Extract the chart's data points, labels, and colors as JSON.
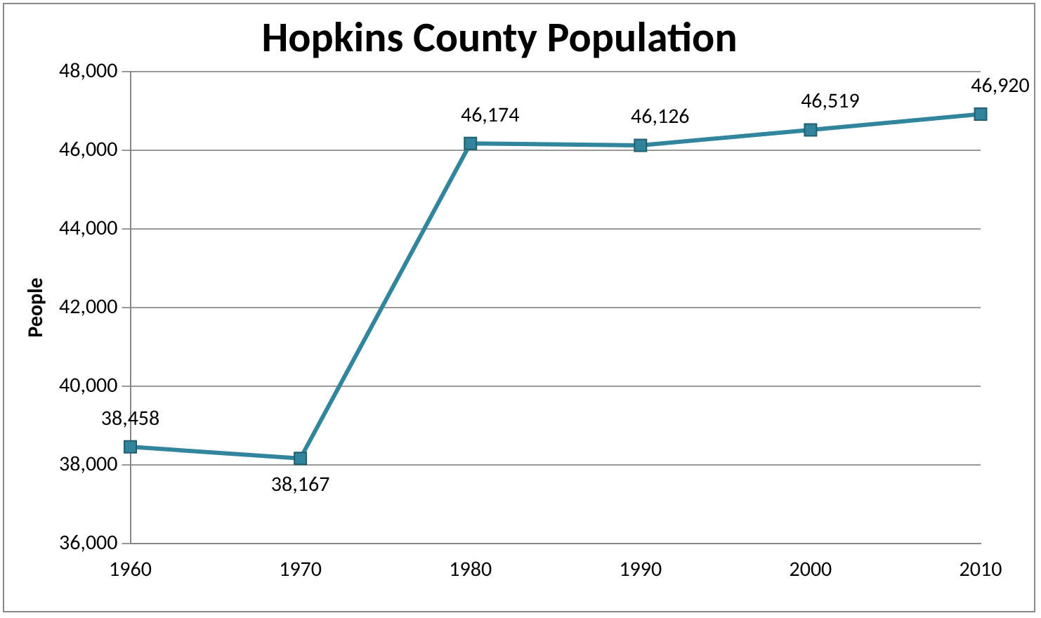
{
  "chart_data": {
    "type": "line",
    "title": "Hopkins County Population",
    "ylabel": "People",
    "categories": [
      "1960",
      "1970",
      "1980",
      "1990",
      "2000",
      "2010"
    ],
    "series": [
      {
        "color": "#31859c",
        "values": [
          38458,
          38167,
          46174,
          46126,
          46519,
          46920
        ],
        "value_labels": [
          "38,458",
          "38,167",
          "46,174",
          "46,126",
          "46,519",
          "46,920"
        ]
      }
    ],
    "ylim": [
      36000,
      48000
    ],
    "yticks": [
      {
        "value": 36000,
        "label": "36,000"
      },
      {
        "value": 38000,
        "label": "38,000"
      },
      {
        "value": 40000,
        "label": "40,000"
      },
      {
        "value": 42000,
        "label": "42,000"
      },
      {
        "value": 44000,
        "label": "44,000"
      },
      {
        "value": 46000,
        "label": "46,000"
      },
      {
        "value": 48000,
        "label": "48,000"
      }
    ],
    "grid": "y",
    "legend": false,
    "marker": "square",
    "line_style": "solid"
  }
}
